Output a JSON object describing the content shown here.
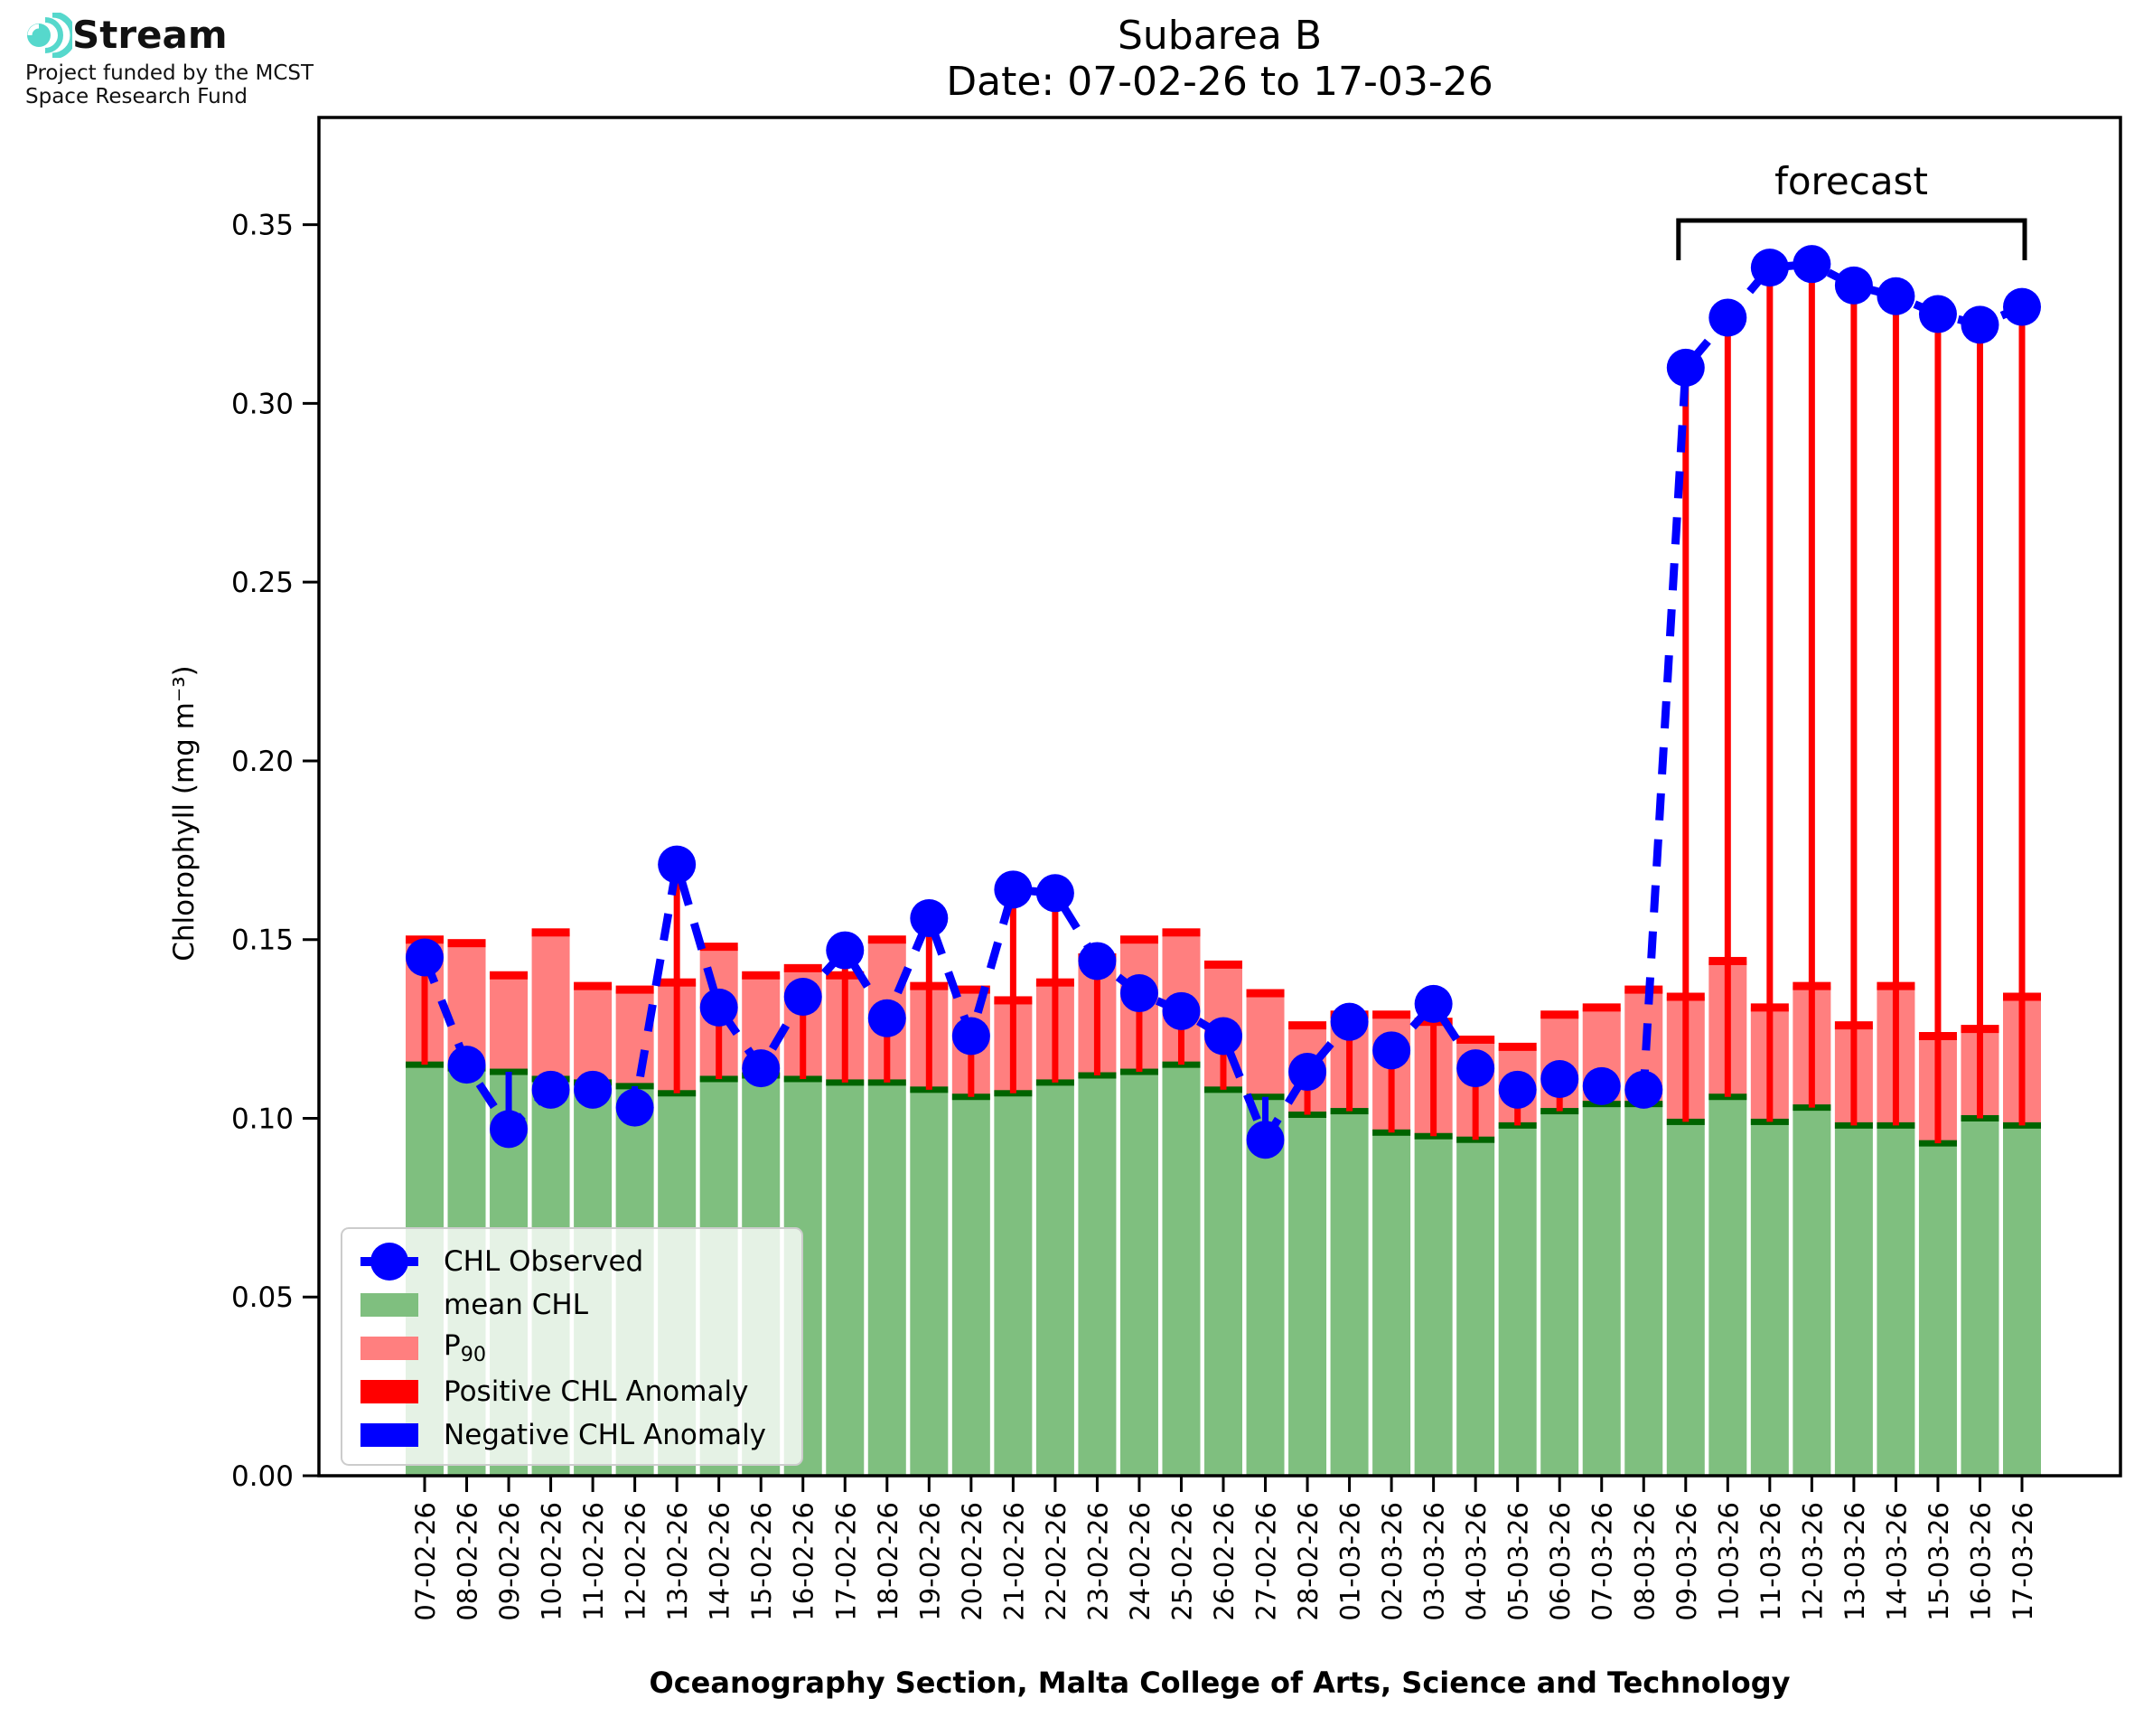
{
  "logo": {
    "brand": "Stream",
    "subtitle_line1": "Project funded by the MCST",
    "subtitle_line2": "Space Research Fund"
  },
  "title": {
    "line1": "Subarea B",
    "line2": "Date: 07-02-26 to 17-03-26"
  },
  "forecast": {
    "label": "forecast"
  },
  "legend": {
    "observed": "CHL Observed",
    "mean": "mean CHL",
    "p90_base": "P",
    "p90_sub": "90",
    "positive": "Positive CHL Anomaly",
    "negative": "Negative CHL Anomaly"
  },
  "axes": {
    "ylabel": "Chlorophyll (mg m⁻³)",
    "xlabel": "Oceanography Section, Malta College of Arts, Science and Technology",
    "y_ticks": [
      "0.00",
      "0.05",
      "0.10",
      "0.15",
      "0.20",
      "0.25",
      "0.30",
      "0.35"
    ],
    "ylim": [
      0,
      0.38
    ]
  },
  "colors": {
    "observed_blue": "#0000ff",
    "anomaly_red": "#ff0000",
    "mean_green": "#7fbf7f",
    "mean_green_edge": "#006400",
    "p90_pink": "#ff7f7f",
    "p90_edge": "#ff0000",
    "spine_black": "#000000",
    "logo_teal": "#56d8cc"
  },
  "chart_data": {
    "type": "bar",
    "title": "Subarea B — Date: 07-02-26 to 17-03-26",
    "xlabel": "Oceanography Section, Malta College of Arts, Science and Technology",
    "ylabel": "Chlorophyll (mg m⁻³)",
    "ylim": [
      0,
      0.38
    ],
    "grid": false,
    "legend_position": "lower left",
    "dates": [
      "07-02-26",
      "08-02-26",
      "09-02-26",
      "10-02-26",
      "11-02-26",
      "12-02-26",
      "13-02-26",
      "14-02-26",
      "15-02-26",
      "16-02-26",
      "17-02-26",
      "18-02-26",
      "19-02-26",
      "20-02-26",
      "21-02-26",
      "22-02-26",
      "23-02-26",
      "24-02-26",
      "25-02-26",
      "26-02-26",
      "27-02-26",
      "28-02-26",
      "01-03-26",
      "02-03-26",
      "03-03-26",
      "04-03-26",
      "05-03-26",
      "06-03-26",
      "07-03-26",
      "08-03-26",
      "09-03-26",
      "10-03-26",
      "11-03-26",
      "12-03-26",
      "13-03-26",
      "14-03-26",
      "15-03-26",
      "16-03-26",
      "17-03-26"
    ],
    "series": [
      {
        "name": "mean CHL",
        "values": [
          0.115,
          0.114,
          0.113,
          0.111,
          0.11,
          0.109,
          0.107,
          0.111,
          0.112,
          0.111,
          0.11,
          0.11,
          0.108,
          0.106,
          0.107,
          0.11,
          0.112,
          0.113,
          0.115,
          0.108,
          0.106,
          0.101,
          0.102,
          0.096,
          0.095,
          0.094,
          0.098,
          0.102,
          0.104,
          0.104,
          0.099,
          0.106,
          0.099,
          0.103,
          0.098,
          0.098,
          0.093,
          0.1,
          0.098
        ]
      },
      {
        "name": "P90",
        "values": [
          0.15,
          0.149,
          0.14,
          0.152,
          0.137,
          0.136,
          0.138,
          0.148,
          0.14,
          0.142,
          0.14,
          0.15,
          0.137,
          0.136,
          0.133,
          0.138,
          0.145,
          0.15,
          0.152,
          0.143,
          0.135,
          0.126,
          0.129,
          0.129,
          0.127,
          0.122,
          0.12,
          0.129,
          0.131,
          0.136,
          0.134,
          0.144,
          0.131,
          0.137,
          0.126,
          0.137,
          0.123,
          0.125,
          0.134
        ]
      },
      {
        "name": "CHL Observed",
        "values": [
          0.145,
          0.115,
          0.097,
          0.108,
          0.108,
          0.103,
          0.171,
          0.131,
          0.114,
          0.134,
          0.147,
          0.128,
          0.156,
          0.123,
          0.164,
          0.163,
          0.144,
          0.135,
          0.13,
          0.123,
          0.094,
          0.113,
          0.127,
          0.119,
          0.132,
          0.114,
          0.108,
          0.111,
          0.109,
          0.108,
          0.31,
          0.324,
          0.338,
          0.339,
          0.333,
          0.33,
          0.325,
          0.322,
          0.327
        ]
      }
    ],
    "forecast_start_index": 30,
    "forecast_label": "forecast"
  }
}
